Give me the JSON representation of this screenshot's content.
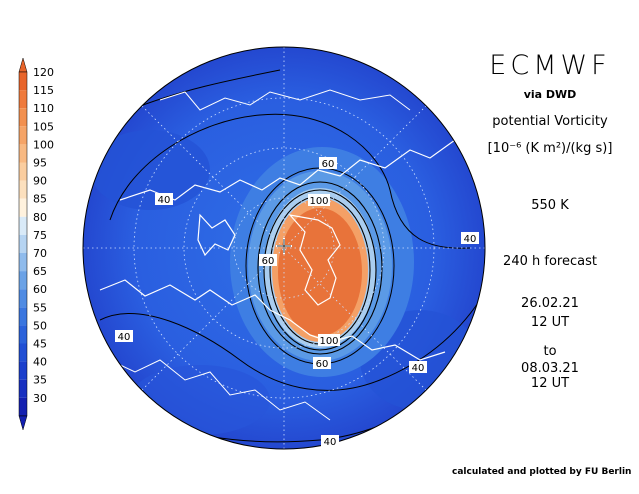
{
  "header": {
    "title": "ECMWF",
    "source": "via DWD",
    "variable": "potential Vorticity",
    "units": "[10⁻⁶ (K m²)/(kg s)]",
    "level": "550 K",
    "forecast": "240 h forecast",
    "init_date": "26.02.21",
    "init_time": "12 UT",
    "to_label": "to",
    "valid_date": "08.03.21",
    "valid_time": "12 UT"
  },
  "footer": {
    "credit": "calculated and plotted by FU Berlin"
  },
  "colorbar": {
    "levels": [
      "120",
      "115",
      "110",
      "105",
      "100",
      "95",
      "90",
      "85",
      "80",
      "75",
      "70",
      "65",
      "60",
      "55",
      "50",
      "45",
      "40",
      "35",
      "30"
    ],
    "colors": [
      "#e8642a",
      "#ef7a3c",
      "#f2904f",
      "#f5a467",
      "#f8b982",
      "#facd9f",
      "#fce0be",
      "#fff2de",
      "#d9eaf8",
      "#b6d4f2",
      "#8fbbec",
      "#6ba2e6",
      "#4f8be3",
      "#3a76df",
      "#2b62da",
      "#214fd4",
      "#1b3fcc",
      "#1830c0",
      "#1420b0"
    ]
  },
  "map": {
    "contour_labels": [
      {
        "text": "40"
      },
      {
        "text": "40"
      },
      {
        "text": "40"
      },
      {
        "text": "40"
      },
      {
        "text": "40"
      },
      {
        "text": "60"
      },
      {
        "text": "60"
      },
      {
        "text": "60"
      },
      {
        "text": "100"
      },
      {
        "text": "100"
      }
    ],
    "colors": {
      "background": "#2a5ee0",
      "vortex_edge": "#5b9ae6",
      "vortex_core": "#e8733a"
    }
  }
}
